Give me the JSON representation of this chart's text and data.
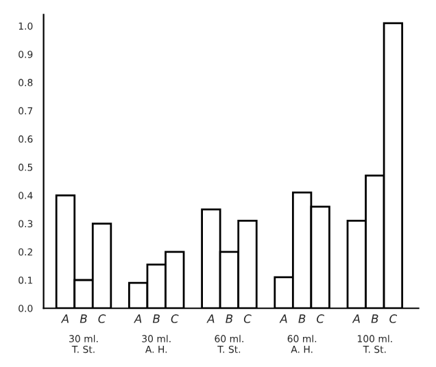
{
  "chart_data": {
    "type": "bar",
    "categories": [
      "30 ml.\nT. St.",
      "30 ml.\nA. H.",
      "60 ml.\nT. St.",
      "60 ml.\nA. H.",
      "100 ml.\nT. St."
    ],
    "series": [
      {
        "name": "A",
        "color": "#ffffff",
        "values": [
          0.4,
          0.09,
          0.35,
          0.11,
          0.31
        ]
      },
      {
        "name": "B",
        "color": "#ffffff",
        "values": [
          0.1,
          0.155,
          0.2,
          0.41,
          0.47
        ]
      },
      {
        "name": "C",
        "color": "#ffffff",
        "values": [
          0.3,
          0.2,
          0.31,
          0.36,
          1.01
        ]
      }
    ],
    "ylim": [
      0,
      1.04
    ],
    "yticks": [
      {
        "value": 0,
        "label": "0.0"
      },
      0.1,
      0.2,
      0.3,
      0.4,
      0.5,
      0.6,
      0.7,
      0.8,
      0.9,
      {
        "value": 1,
        "label": "1.0"
      }
    ],
    "grid": false,
    "legend": false
  }
}
